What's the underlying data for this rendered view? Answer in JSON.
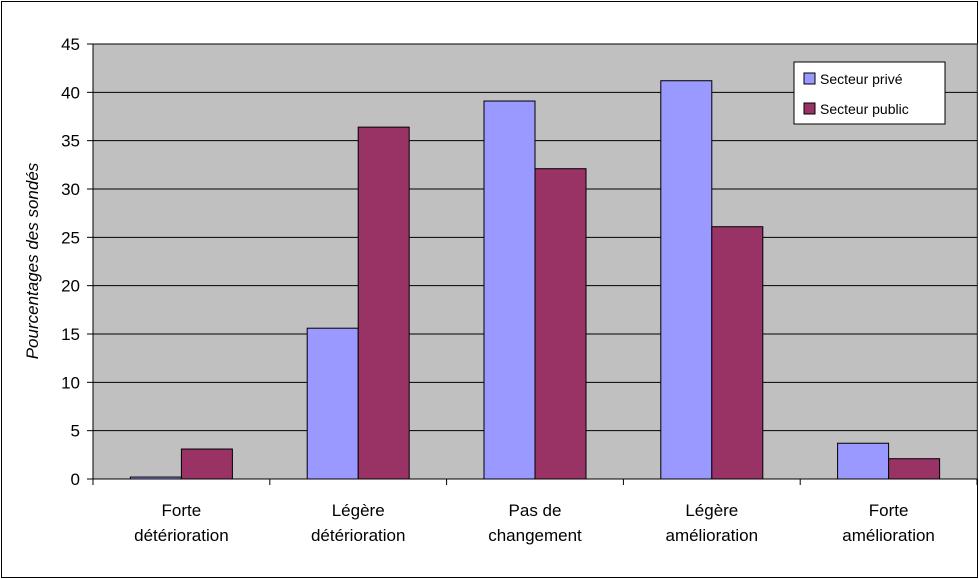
{
  "chart_data": {
    "type": "bar",
    "title": "",
    "xlabel": "",
    "ylabel": "Pourcentages des sondés",
    "categories": [
      [
        "Forte",
        "détérioration"
      ],
      [
        "Légère",
        "détérioration"
      ],
      [
        "Pas de",
        "changement"
      ],
      [
        "Légère",
        "amélioration"
      ],
      [
        "Forte",
        "amélioration"
      ]
    ],
    "series": [
      {
        "name": "Secteur privé",
        "color": "#9999ff",
        "values": [
          0.2,
          15.6,
          39.1,
          41.2,
          3.7
        ]
      },
      {
        "name": "Secteur public",
        "color": "#993366",
        "values": [
          3.1,
          36.4,
          32.1,
          26.1,
          2.1
        ]
      }
    ],
    "ylim": [
      0,
      45
    ],
    "yticks": [
      0,
      5,
      10,
      15,
      20,
      25,
      30,
      35,
      40,
      45
    ],
    "grid": true,
    "plot_background": "#c0c0c0",
    "legend_position": "top-right"
  }
}
